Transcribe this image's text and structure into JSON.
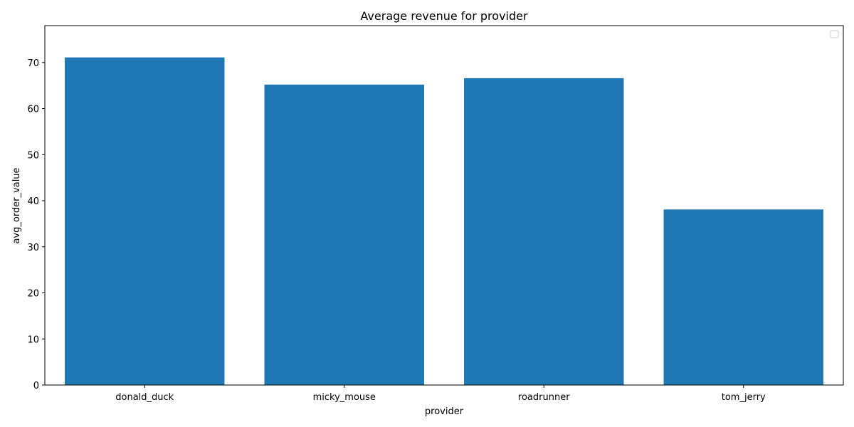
{
  "chart_data": {
    "type": "bar",
    "title": "Average revenue for provider",
    "xlabel": "provider",
    "ylabel": "avg_order_value",
    "categories": [
      "donald_duck",
      "micky_mouse",
      "roadrunner",
      "tom_jerry"
    ],
    "values": [
      71.1,
      65.2,
      66.6,
      38.1
    ],
    "ylim": [
      0,
      78
    ],
    "yticks": [
      0,
      10,
      20,
      30,
      40,
      50,
      60,
      70
    ],
    "grid": false,
    "legend": "top-right",
    "colors": {
      "bar": "#1f77b4"
    }
  }
}
